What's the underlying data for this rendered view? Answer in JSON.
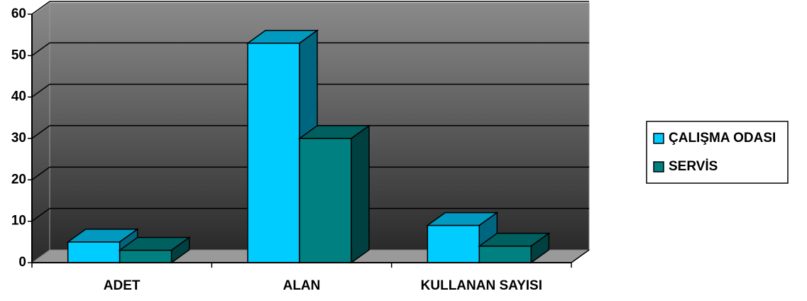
{
  "chart_data": {
    "type": "bar3d",
    "categories": [
      "ADET",
      "ALAN",
      "KULLANAN SAYISI"
    ],
    "series": [
      {
        "name": "ÇALIŞMA ODASI",
        "color": "#00ccff",
        "values": [
          5,
          53,
          9
        ]
      },
      {
        "name": "SERVİS",
        "color": "#008080",
        "values": [
          3,
          30,
          4
        ]
      }
    ],
    "ylim": [
      0,
      60
    ],
    "yticks": [
      0,
      10,
      20,
      30,
      40,
      50,
      60
    ],
    "grid": true,
    "legend": "right"
  }
}
